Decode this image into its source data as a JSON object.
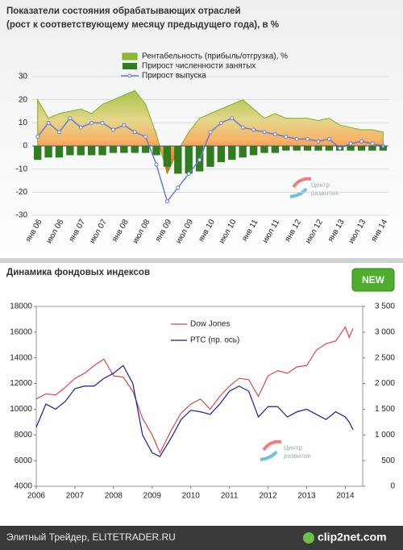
{
  "chart_data": [
    {
      "type": "combo",
      "title": "Показатели состояния обрабатывающих отраслей",
      "subtitle": "(рост к соответствующему месяцу предыдущего года), в %",
      "categories": [
        "янв 06",
        null,
        "июл 06",
        null,
        "янв 07",
        null,
        "июл 07",
        null,
        "янв 08",
        null,
        "июл 08",
        null,
        "янв 09",
        null,
        "июл 09",
        null,
        "янв 10",
        null,
        "июл 10",
        null,
        "янв 11",
        null,
        "июл 11",
        null,
        "янв 12",
        null,
        "июл 12",
        null,
        "янв 13",
        null,
        "июл 13",
        null,
        "янв 14"
      ],
      "series": [
        {
          "name": "Рентабельность (прибыль/отгрузка), %",
          "kind": "area",
          "color": "#7fae2a",
          "values": [
            20,
            12,
            14,
            15,
            16,
            14,
            18,
            20,
            22,
            24,
            18,
            5,
            -12,
            -2,
            6,
            12,
            14,
            16,
            18,
            20,
            16,
            12,
            14,
            12,
            12,
            12,
            11,
            12,
            9,
            8,
            7,
            7,
            6
          ]
        },
        {
          "name": "Прирост численности занятых",
          "kind": "bar",
          "color": "#2e7d1e",
          "values": [
            -6,
            -5,
            -5,
            -4,
            -4,
            -4,
            -4,
            -3,
            -3,
            -3,
            -3,
            -4,
            -9,
            -12,
            -12,
            -11,
            -9,
            -7,
            -6,
            -5,
            -4,
            -3,
            -3,
            -2,
            -2,
            -2,
            -2,
            -2,
            -2,
            -2,
            -2,
            -2,
            -2
          ]
        },
        {
          "name": "Прирост выпуска",
          "kind": "line",
          "color": "#6a78d0",
          "values": [
            4,
            10,
            6,
            12,
            8,
            10,
            10,
            7,
            9,
            6,
            4,
            -8,
            -24,
            -18,
            -12,
            -6,
            6,
            10,
            12,
            8,
            7,
            6,
            5,
            4,
            3,
            3,
            2,
            3,
            -1,
            1,
            2,
            1,
            0
          ]
        }
      ],
      "ylim": [
        -30,
        30
      ],
      "yticks": [
        -30,
        -20,
        -10,
        0,
        10,
        20,
        30
      ],
      "grid": true,
      "watermark": [
        "Центр",
        "развития"
      ]
    },
    {
      "type": "line",
      "title": "Динамика фондовых индексов",
      "badge": "NEW",
      "xlim": [
        2006,
        2014.45
      ],
      "xticks": [
        2006,
        2007,
        2008,
        2009,
        2010,
        2011,
        2012,
        2013,
        2014
      ],
      "ylim": [
        4000,
        18000
      ],
      "yticks": [
        4000,
        6000,
        8000,
        10000,
        12000,
        14000,
        16000,
        18000
      ],
      "y2lim": [
        0,
        3500
      ],
      "y2ticks": [
        0,
        500,
        {
          "value": 1000,
          "label": "1 000"
        },
        {
          "value": 1500,
          "label": "1 500"
        },
        {
          "value": 2000,
          "label": "2 000"
        },
        {
          "value": 2500,
          "label": "2 500"
        },
        {
          "value": 3000,
          "label": "3 000"
        },
        {
          "value": 3500,
          "label": "3 500"
        }
      ],
      "series": [
        {
          "name": "Dow Jones",
          "color": "#d84848",
          "x": [
            2006,
            2006.25,
            2006.5,
            2006.75,
            2007,
            2007.25,
            2007.5,
            2007.75,
            2008,
            2008.25,
            2008.5,
            2008.75,
            2009,
            2009.2,
            2009.5,
            2009.75,
            2010,
            2010.25,
            2010.5,
            2010.75,
            2011,
            2011.25,
            2011.5,
            2011.75,
            2012,
            2012.25,
            2012.5,
            2012.75,
            2013,
            2013.25,
            2013.5,
            2013.75,
            2014,
            2014.1,
            2014.2
          ],
          "values": [
            10800,
            11200,
            11100,
            11700,
            12400,
            12800,
            13400,
            13900,
            12600,
            12500,
            11400,
            9300,
            8000,
            6600,
            8400,
            9700,
            10400,
            10800,
            10000,
            11000,
            11800,
            12400,
            12300,
            11000,
            12600,
            13000,
            12800,
            13300,
            13400,
            14600,
            15100,
            15300,
            16400,
            15600,
            16300
          ]
        },
        {
          "name": "РТС (пр. ось)",
          "color": "#1a1aa0",
          "axis": "y2",
          "x": [
            2006,
            2006.25,
            2006.5,
            2006.75,
            2007,
            2007.25,
            2007.5,
            2007.75,
            2008,
            2008.25,
            2008.5,
            2008.75,
            2009,
            2009.2,
            2009.5,
            2009.75,
            2010,
            2010.25,
            2010.5,
            2010.75,
            2011,
            2011.25,
            2011.5,
            2011.75,
            2012,
            2012.25,
            2012.5,
            2012.75,
            2013,
            2013.25,
            2013.5,
            2013.75,
            2014,
            2014.1,
            2014.2
          ],
          "values": [
            1150,
            1600,
            1500,
            1650,
            1900,
            1950,
            1950,
            2100,
            2200,
            2350,
            2000,
            1000,
            650,
            580,
            950,
            1300,
            1480,
            1450,
            1400,
            1600,
            1850,
            1950,
            1850,
            1350,
            1550,
            1550,
            1350,
            1450,
            1500,
            1400,
            1300,
            1450,
            1350,
            1250,
            1100
          ]
        }
      ],
      "watermark": [
        "Центр",
        "развития"
      ]
    }
  ],
  "footer": {
    "text": "Элитный Трейдер, ELITETRADER.RU",
    "logo": "clip2net.com"
  }
}
